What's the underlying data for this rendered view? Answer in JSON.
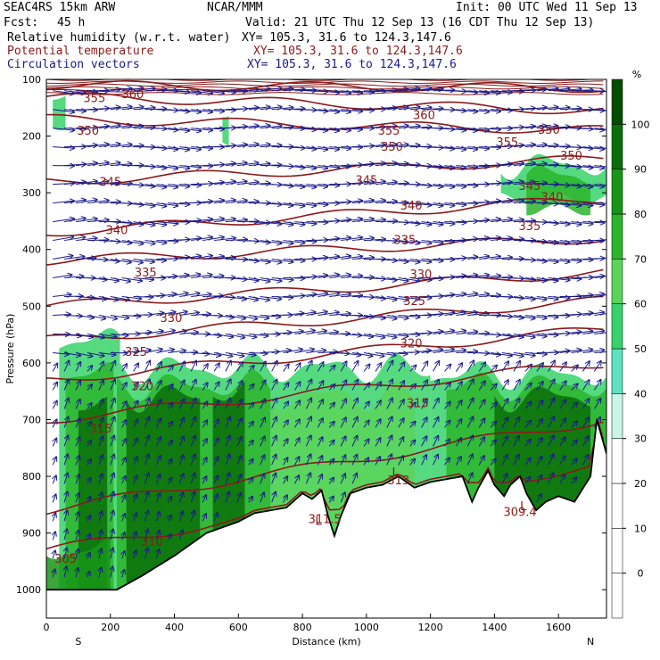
{
  "header": {
    "model": "SEAC4RS 15km ARW",
    "org": "NCAR/MMM",
    "init": "Init: 00 UTC Wed 11 Sep 13",
    "fcst_label": "Fcst:",
    "fcst_value": "45 h",
    "valid": "Valid: 21 UTC Thu 12 Sep 13 (16 CDT Thu 12 Sep 13)",
    "field1_name": "Relative humidity (w.r.t. water)",
    "field1_xy": "XY= 105.3, 31.6 to 124.3,147.6",
    "field2_name": "Potential temperature",
    "field2_xy": "XY= 105.3, 31.6 to 124.3,147.6",
    "field3_name": "Circulation vectors",
    "field3_xy": "XY= 105.3, 31.6 to 124.3,147.6",
    "colors": {
      "field1": "#000000",
      "field2": "#8b1a1a",
      "field3": "#1a1a8b"
    }
  },
  "chart_data": {
    "type": "heatmap",
    "title": "Relative humidity (w.r.t. water) / Potential temperature / Circulation vectors",
    "xlabel": "Distance (km)",
    "ylabel": "Pressure (hPa)",
    "xlim": [
      0,
      1750
    ],
    "ylim": [
      1050,
      100
    ],
    "x_ticks": [
      0,
      200,
      400,
      600,
      800,
      1000,
      1200,
      1400,
      1600
    ],
    "y_ticks": [
      100,
      200,
      300,
      400,
      500,
      600,
      700,
      800,
      900,
      1000
    ],
    "end_labels": {
      "left": "S",
      "right": "N"
    },
    "colorbar": {
      "unit": "%",
      "levels": [
        0,
        10,
        20,
        30,
        40,
        50,
        60,
        70,
        80,
        90,
        100
      ],
      "colors": [
        "#ffffff",
        "#ffffff",
        "#ffffff",
        "#ffffff",
        "#c8f5e8",
        "#5fe0c0",
        "#37d36a",
        "#5ad45a",
        "#2db42d",
        "#179617",
        "#0a6e0a",
        "#004d00"
      ]
    },
    "terrain_profile": {
      "x": [
        0,
        220,
        300,
        400,
        500,
        600,
        650,
        700,
        750,
        800,
        830,
        860,
        880,
        900,
        920,
        950,
        1000,
        1050,
        1100,
        1150,
        1200,
        1250,
        1300,
        1330,
        1350,
        1380,
        1400,
        1430,
        1450,
        1480,
        1500,
        1530,
        1560,
        1600,
        1650,
        1700,
        1720,
        1750
      ],
      "p": [
        1000,
        1000,
        975,
        940,
        900,
        880,
        865,
        860,
        855,
        830,
        840,
        825,
        870,
        905,
        870,
        830,
        820,
        815,
        800,
        820,
        810,
        805,
        800,
        845,
        820,
        790,
        815,
        835,
        815,
        800,
        830,
        860,
        845,
        835,
        845,
        800,
        700,
        760
      ]
    },
    "theta_isentropes": [
      {
        "value": 360,
        "label_x": 270,
        "label_p": 125
      },
      {
        "value": 355,
        "label_x": 150,
        "label_p": 132
      },
      {
        "value": 350,
        "label_x": 130,
        "label_p": 190
      },
      {
        "value": 345,
        "label_x": 200,
        "label_p": 280
      },
      {
        "value": 340,
        "label_x": 220,
        "label_p": 365
      },
      {
        "value": 335,
        "label_x": 310,
        "label_p": 440
      },
      {
        "value": 330,
        "label_x": 390,
        "label_p": 520
      },
      {
        "value": 325,
        "label_x": 280,
        "label_p": 580
      },
      {
        "value": 320,
        "label_x": 300,
        "label_p": 640
      },
      {
        "value": 315,
        "label_x": 170,
        "label_p": 715
      },
      {
        "value": 310,
        "label_x": 330,
        "label_p": 915
      },
      {
        "value": 305,
        "label_x": 60,
        "label_p": 945
      },
      {
        "value": 360,
        "label_x": 1180,
        "label_p": 162
      },
      {
        "value": 355,
        "label_x": 1070,
        "label_p": 190
      },
      {
        "value": 350,
        "label_x": 1080,
        "label_p": 218
      },
      {
        "value": 345,
        "label_x": 1000,
        "label_p": 277
      },
      {
        "value": 340,
        "label_x": 1140,
        "label_p": 322
      },
      {
        "value": 335,
        "label_x": 1120,
        "label_p": 382
      },
      {
        "value": 330,
        "label_x": 1170,
        "label_p": 443
      },
      {
        "value": 325,
        "label_x": 1150,
        "label_p": 490
      },
      {
        "value": 320,
        "label_x": 1140,
        "label_p": 565
      },
      {
        "value": 315,
        "label_x": 1160,
        "label_p": 670
      },
      {
        "value": 355,
        "label_x": 1440,
        "label_p": 210
      },
      {
        "value": 350,
        "label_x": 1570,
        "label_p": 188
      },
      {
        "value": 350,
        "label_x": 1640,
        "label_p": 234
      },
      {
        "value": 345,
        "label_x": 1510,
        "label_p": 287
      },
      {
        "value": 340,
        "label_x": 1580,
        "label_p": 307
      },
      {
        "value": 335,
        "label_x": 1510,
        "label_p": 358
      }
    ],
    "low_labels": [
      {
        "text": "L",
        "x": 850,
        "p": 878
      },
      {
        "text": "311.5",
        "x": 870,
        "p": 875
      },
      {
        "text": "L",
        "x": 1090,
        "p": 792
      },
      {
        "text": "313",
        "x": 1100,
        "p": 806
      },
      {
        "text": "L",
        "x": 1490,
        "p": 852
      },
      {
        "text": "309.4",
        "x": 1480,
        "p": 862
      }
    ]
  }
}
